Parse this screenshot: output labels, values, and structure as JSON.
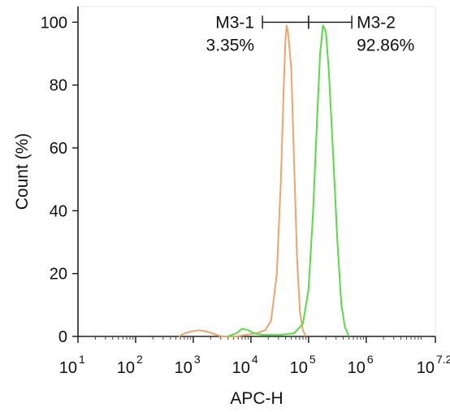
{
  "chart_data": {
    "type": "histogram",
    "xlabel": "APC-H",
    "ylabel": "Count  (%)",
    "x_scale": "log10",
    "xlim": [
      1,
      7.2
    ],
    "ylim": [
      0,
      105
    ],
    "y_ticks": [
      0,
      20,
      40,
      60,
      80,
      100
    ],
    "x_ticks": [
      {
        "base": "10",
        "exp": "1"
      },
      {
        "base": "10",
        "exp": "2"
      },
      {
        "base": "10",
        "exp": "3"
      },
      {
        "base": "10",
        "exp": "4"
      },
      {
        "base": "10",
        "exp": "5"
      },
      {
        "base": "10",
        "exp": "6"
      },
      {
        "base": "10",
        "exp": "7.2"
      }
    ],
    "series": [
      {
        "color": "#f0a36a",
        "points": [
          [
            2.75,
            0
          ],
          [
            2.85,
            1
          ],
          [
            2.95,
            1.5
          ],
          [
            3.1,
            2
          ],
          [
            3.25,
            1.5
          ],
          [
            3.4,
            0.5
          ],
          [
            3.5,
            0
          ],
          [
            3.75,
            0
          ],
          [
            3.9,
            0.5
          ],
          [
            4.1,
            1
          ],
          [
            4.25,
            2
          ],
          [
            4.35,
            5
          ],
          [
            4.45,
            20
          ],
          [
            4.52,
            50
          ],
          [
            4.57,
            80
          ],
          [
            4.6,
            95
          ],
          [
            4.62,
            99
          ],
          [
            4.65,
            96
          ],
          [
            4.7,
            85
          ],
          [
            4.75,
            55
          ],
          [
            4.8,
            25
          ],
          [
            4.85,
            8
          ],
          [
            4.9,
            2
          ],
          [
            4.95,
            0
          ]
        ]
      },
      {
        "color": "#55dd44",
        "points": [
          [
            3.6,
            0
          ],
          [
            3.75,
            1
          ],
          [
            3.85,
            2.5
          ],
          [
            3.95,
            2
          ],
          [
            4.05,
            1
          ],
          [
            4.2,
            0.5
          ],
          [
            4.5,
            0.5
          ],
          [
            4.75,
            1
          ],
          [
            4.9,
            4
          ],
          [
            5.0,
            15
          ],
          [
            5.08,
            40
          ],
          [
            5.15,
            70
          ],
          [
            5.2,
            90
          ],
          [
            5.25,
            99
          ],
          [
            5.3,
            97
          ],
          [
            5.35,
            85
          ],
          [
            5.42,
            60
          ],
          [
            5.5,
            30
          ],
          [
            5.57,
            10
          ],
          [
            5.63,
            3
          ],
          [
            5.7,
            0
          ]
        ]
      }
    ],
    "gates": [
      {
        "label": "M3-1",
        "percent": "3.35%",
        "range": [
          4.2,
          5.0
        ]
      },
      {
        "label": "M3-2",
        "percent": "92.86%",
        "range": [
          5.0,
          5.75
        ]
      }
    ],
    "gate_y": 100
  }
}
